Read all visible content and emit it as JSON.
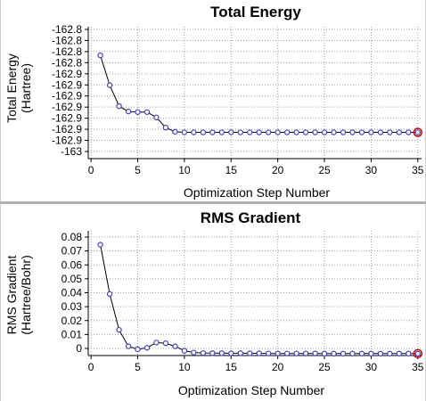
{
  "chart_data": [
    {
      "type": "line",
      "title": "Total Energy",
      "xlabel": "Optimization Step Number",
      "ylabel_line1": "Total Energy",
      "ylabel_line2": "(Hartree)",
      "x_ticks": [
        "0",
        "5",
        "10",
        "15",
        "20",
        "25",
        "30",
        "35"
      ],
      "y_ticks": [
        "-162.8",
        "-162.8",
        "-162.8",
        "-162.8",
        "-162.9",
        "-162.9",
        "-162.9",
        "-162.9",
        "-162.9",
        "-162.9",
        "-162.9",
        "-163"
      ],
      "xlim": [
        -0.3,
        35.4
      ],
      "ylim": [
        -162.993,
        -162.772
      ],
      "grid": true,
      "x": [
        1,
        2,
        3,
        4,
        5,
        6,
        7,
        8,
        9,
        10,
        11,
        12,
        13,
        14,
        15,
        16,
        17,
        18,
        19,
        20,
        21,
        22,
        23,
        24,
        25,
        26,
        27,
        28,
        29,
        30,
        31,
        32,
        33,
        34,
        35
      ],
      "values": [
        -162.82,
        -162.87,
        -162.905,
        -162.914,
        -162.915,
        -162.915,
        -162.924,
        -162.941,
        -162.948,
        -162.949,
        -162.949,
        -162.949,
        -162.949,
        -162.949,
        -162.949,
        -162.949,
        -162.949,
        -162.949,
        -162.949,
        -162.949,
        -162.949,
        -162.949,
        -162.949,
        -162.949,
        -162.949,
        -162.949,
        -162.949,
        -162.949,
        -162.949,
        -162.949,
        -162.949,
        -162.949,
        -162.949,
        -162.949,
        -162.949
      ],
      "highlight_x": 35,
      "colors": {
        "point": "#4040c0",
        "line": "#000000",
        "highlight": "#c00000",
        "grid": "#a0a0a0"
      }
    },
    {
      "type": "line",
      "title": "RMS Gradient",
      "xlabel": "Optimization Step Number",
      "ylabel_line1": "RMS Gradient",
      "ylabel_line2": "(Hartree/Bohr)",
      "x_ticks": [
        "0",
        "5",
        "10",
        "15",
        "20",
        "25",
        "30",
        "35"
      ],
      "y_ticks": [
        "0.08",
        "0.07",
        "0.06",
        "0.05",
        "0.04",
        "0.03",
        "0.02",
        "0.01",
        "0"
      ],
      "xlim": [
        -0.3,
        35.4
      ],
      "ylim": [
        -0.0012,
        0.0823
      ],
      "grid": true,
      "x": [
        1,
        2,
        3,
        4,
        5,
        6,
        7,
        8,
        9,
        10,
        11,
        12,
        13,
        14,
        15,
        16,
        17,
        18,
        19,
        20,
        21,
        22,
        23,
        24,
        25,
        26,
        27,
        28,
        29,
        30,
        31,
        32,
        33,
        34,
        35
      ],
      "values": [
        0.073,
        0.04,
        0.016,
        0.005,
        0.003,
        0.004,
        0.0075,
        0.007,
        0.005,
        0.002,
        0.0008,
        0.0005,
        0.0004,
        0.0004,
        0.0003,
        0.0004,
        0.0003,
        0.0003,
        0.0002,
        0.0002,
        0.0002,
        0.0002,
        0.0002,
        0.0002,
        0.0001,
        0.0001,
        0.0001,
        0.0001,
        0.0001,
        0.0001,
        0.0001,
        0.0001,
        0.0001,
        0.0001,
        0.0001
      ],
      "highlight_x": 35,
      "colors": {
        "point": "#4040c0",
        "line": "#000000",
        "highlight": "#c00000",
        "grid": "#a0a0a0"
      }
    }
  ]
}
